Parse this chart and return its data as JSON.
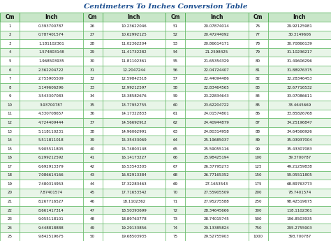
{
  "title": "Centimeters To Inches Conversion Table",
  "title_color": "#1a4d8f",
  "header_bg": "#c8e6c8",
  "row_bg_odd": "#ffffff",
  "row_bg_even": "#e8f5e8",
  "border_color": "#4caf50",
  "col_headers": [
    "Cm",
    "Inch",
    "Cm",
    "Inch",
    "Cm",
    "Inch",
    "Cm",
    "Inch"
  ],
  "data": [
    [
      1,
      "0.393700787",
      26,
      "10.23622046",
      51,
      "20.07874014",
      76,
      "29.92125981"
    ],
    [
      2,
      "0.787401574",
      27,
      "10.62992125",
      52,
      "20.47244092",
      77,
      "30.3149606"
    ],
    [
      3,
      "1.181102361",
      28,
      "11.02362204",
      53,
      "20.86614171",
      78,
      "30.70866139"
    ],
    [
      4,
      "1.574803148",
      29,
      "11.41732282",
      54,
      "21.2598425",
      79,
      "31.10236217"
    ],
    [
      5,
      "1.968503935",
      30,
      "11.81102361",
      55,
      "21.65354329",
      80,
      "31.49606296"
    ],
    [
      6,
      "2.362204722",
      31,
      "12.2047244",
      56,
      "22.04724407",
      81,
      "31.88976375"
    ],
    [
      7,
      "2.755905509",
      32,
      "12.59842518",
      57,
      "22.44094486",
      82,
      "32.28346453"
    ],
    [
      8,
      "3.149606296",
      33,
      "12.99212597",
      58,
      "22.83464565",
      83,
      "32.67716532"
    ],
    [
      9,
      "3.543307083",
      34,
      "13.38582676",
      59,
      "23.22834643",
      84,
      "33.07086611"
    ],
    [
      10,
      "3.93700787",
      35,
      "13.77952755",
      60,
      "23.62204722",
      85,
      "33.4645669"
    ],
    [
      11,
      "4.330708657",
      36,
      "14.17322833",
      61,
      "24.01574801",
      86,
      "33.85826768"
    ],
    [
      12,
      "4.724409444",
      37,
      "14.56692912",
      62,
      "24.40944879",
      87,
      "34.25196847"
    ],
    [
      13,
      "5.118110231",
      38,
      "14.96062991",
      63,
      "24.80314958",
      88,
      "34.64566926"
    ],
    [
      14,
      "5.511811018",
      39,
      "15.35433069",
      64,
      "25.19685037",
      89,
      "35.03937004"
    ],
    [
      15,
      "5.905511805",
      40,
      "15.74803148",
      65,
      "25.59055116",
      90,
      "35.43307083"
    ],
    [
      16,
      "6.299212592",
      41,
      "16.14173227",
      66,
      "25.98425194",
      100,
      "39.3700787"
    ],
    [
      17,
      "6.692913379",
      42,
      "16.53543305",
      67,
      "26.37795273",
      125,
      "49.21259838"
    ],
    [
      18,
      "7.086614166",
      43,
      "16.92913384",
      68,
      "26.77165352",
      150,
      "59.05511805"
    ],
    [
      19,
      "7.480314953",
      44,
      "17.32283463",
      69,
      "27.1653543",
      175,
      "68.89763773"
    ],
    [
      20,
      "7.87401574",
      45,
      "17.71653542",
      70,
      "27.55905509",
      200,
      "78.7401574"
    ],
    [
      21,
      "8.267716527",
      46,
      "18.1102362",
      71,
      "27.95275588",
      250,
      "98.42519675"
    ],
    [
      22,
      "8.661417314",
      47,
      "18.50393699",
      72,
      "28.34645666",
      300,
      "118.1102361"
    ],
    [
      23,
      "9.055118101",
      48,
      "18.89763778",
      73,
      "28.74015745",
      500,
      "196.8503935"
    ],
    [
      24,
      "9.448818888",
      49,
      "19.29133856",
      74,
      "29.13385824",
      750,
      "295.2755903"
    ],
    [
      25,
      "9.842519675",
      50,
      "19.68503935",
      75,
      "29.52755903",
      1000,
      "393.700787"
    ]
  ]
}
